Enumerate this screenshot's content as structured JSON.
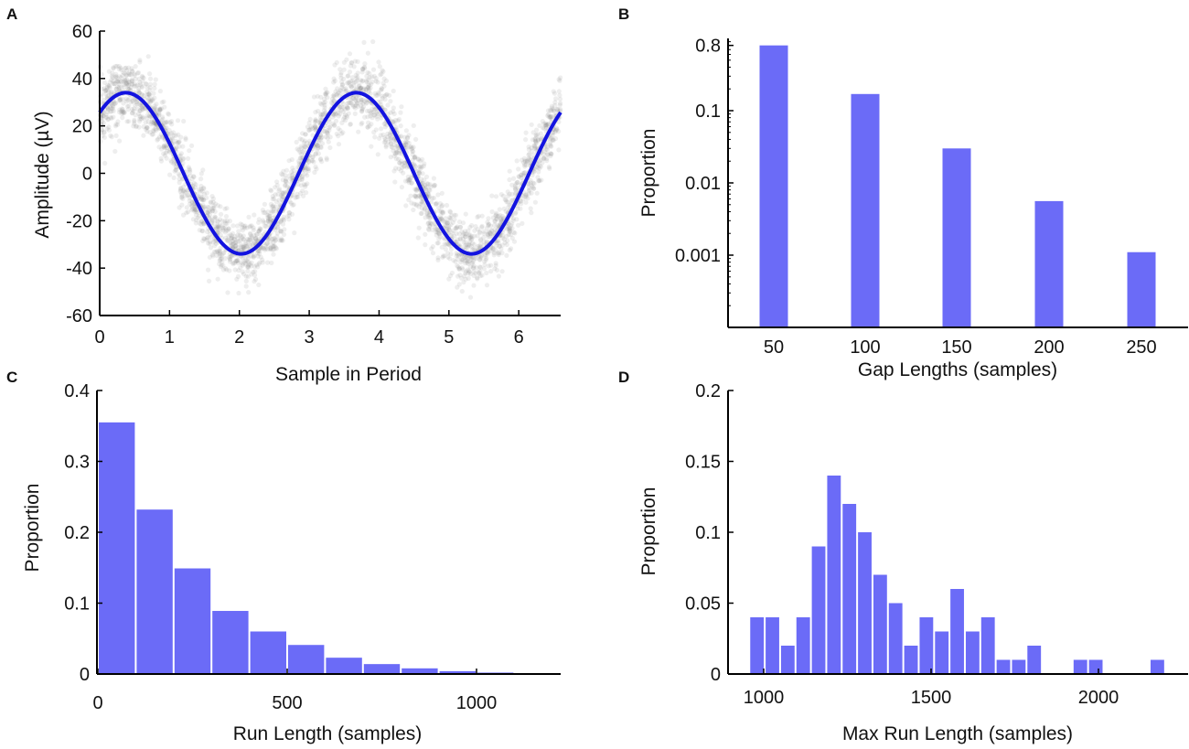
{
  "figure": {
    "panel_labels": [
      "A",
      "B",
      "C",
      "D"
    ]
  },
  "colors": {
    "bar": "#6b6bf7",
    "sine": "#1313e0",
    "scatter": "#8a8a8a",
    "axis": "#000000"
  },
  "chart_data": [
    {
      "panel": "A",
      "type": "scatter",
      "title": "",
      "xlabel": "Sample in Period",
      "ylabel": "Amplitude (µV)",
      "xlim": [
        0,
        6.6
      ],
      "ylim": [
        -60,
        60
      ],
      "xticks": [
        0,
        1,
        2,
        3,
        4,
        5,
        6
      ],
      "yticks": [
        60,
        40,
        20,
        0,
        -20,
        -40,
        -60
      ],
      "ytick_labels": [
        "60",
        "40",
        "20",
        "0",
        "-20",
        "-40",
        "-60"
      ],
      "series": [
        {
          "name": "fit",
          "kind": "line",
          "function": "sine",
          "amplitude": 34,
          "period": 3.3,
          "phase_zero_at": 6.15,
          "note": "y = 34*sin(2*pi*(x+0.45)/3.3)"
        },
        {
          "name": "samples",
          "kind": "scatter",
          "noise_sd": 7,
          "count": 3000
        }
      ]
    },
    {
      "panel": "B",
      "type": "bar",
      "scale_y": "log",
      "xlabel": "Gap Lengths (samples)",
      "ylabel": "Proportion",
      "categories": [
        "50",
        "100",
        "150",
        "200",
        "250"
      ],
      "values": [
        0.8,
        0.17,
        0.03,
        0.0056,
        0.0011
      ],
      "yticks": [
        0.8,
        0.1,
        0.01,
        0.001
      ],
      "ytick_labels": [
        "0.8",
        "0.1",
        "0.01",
        "0.001"
      ],
      "ylim": [
        0.0001,
        1.0
      ]
    },
    {
      "panel": "C",
      "type": "bar",
      "xlabel": "Run Length (samples)",
      "ylabel": "Proportion",
      "bin_width": 100,
      "x": [
        50,
        150,
        250,
        350,
        450,
        550,
        650,
        750,
        850,
        950,
        1050,
        1150
      ],
      "values": [
        0.355,
        0.232,
        0.149,
        0.089,
        0.06,
        0.041,
        0.023,
        0.014,
        0.008,
        0.004,
        0.002,
        0.001
      ],
      "xlim": [
        -10,
        1220
      ],
      "ylim": [
        0,
        0.4
      ],
      "xticks": [
        0,
        500,
        1000
      ],
      "xtick_labels": [
        "0",
        "500",
        "1000"
      ],
      "yticks": [
        0,
        0.1,
        0.2,
        0.3,
        0.4
      ],
      "ytick_labels": [
        "0",
        "0.1",
        "0.2",
        "0.3",
        "0.4"
      ]
    },
    {
      "panel": "D",
      "type": "bar",
      "xlabel": "Max Run Length (samples)",
      "ylabel": "Proportion",
      "bin_width": 46,
      "x": [
        980,
        1026,
        1072,
        1118,
        1164,
        1210,
        1256,
        1302,
        1348,
        1394,
        1440,
        1486,
        1532,
        1578,
        1624,
        1670,
        1716,
        1762,
        1808,
        1854,
        1900,
        1946,
        1992,
        2038,
        2084,
        2130,
        2176
      ],
      "values": [
        0.04,
        0.04,
        0.02,
        0.04,
        0.09,
        0.14,
        0.12,
        0.1,
        0.07,
        0.05,
        0.02,
        0.04,
        0.03,
        0.06,
        0.03,
        0.04,
        0.01,
        0.01,
        0.02,
        0,
        0,
        0.01,
        0.01,
        0,
        0,
        0,
        0.01
      ],
      "xlim": [
        940,
        2240
      ],
      "ylim": [
        0,
        0.2
      ],
      "xticks": [
        1000,
        1500,
        2000
      ],
      "xtick_labels": [
        "1000",
        "1500",
        "2000"
      ],
      "yticks": [
        0,
        0.05,
        0.1,
        0.15,
        0.2
      ],
      "ytick_labels": [
        "0",
        "0.05",
        "0.1",
        "0.15",
        "0.2"
      ]
    }
  ]
}
